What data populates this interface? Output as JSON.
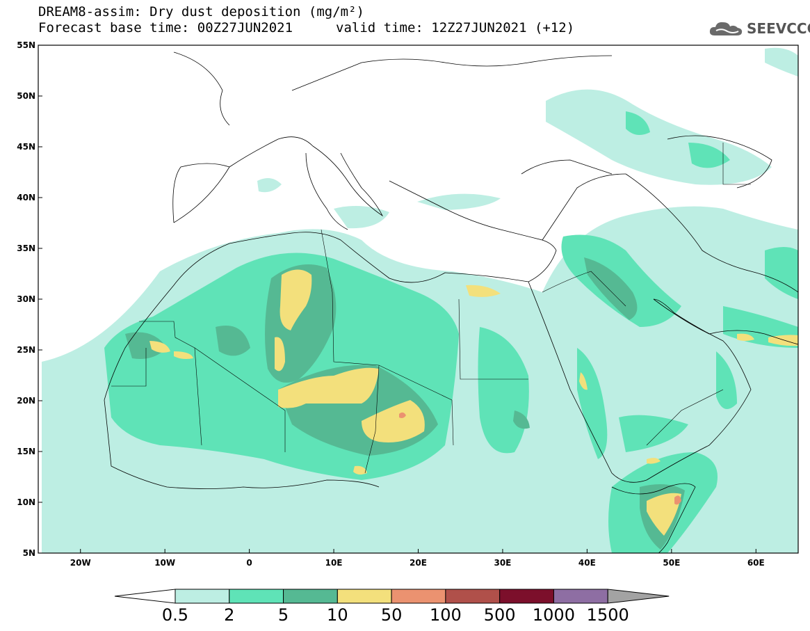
{
  "title": {
    "line1": "DREAM8-assim: Dry dust deposition (mg/m²)",
    "line2": "Forecast base time: 00Z27JUN2021",
    "valid": "valid time: 12Z27JUN2021 (+12)"
  },
  "logo": {
    "text": "SEEVCCC",
    "icon": "cloud-logo-icon"
  },
  "map": {
    "lon_range": [
      -25,
      65
    ],
    "lat_range": [
      5,
      55
    ],
    "lat_ticks": [
      "55N",
      "50N",
      "45N",
      "40N",
      "35N",
      "30N",
      "25N",
      "20N",
      "15N",
      "10N",
      "5N"
    ],
    "lon_ticks": [
      "20W",
      "10W",
      "0",
      "10E",
      "20E",
      "30E",
      "40E",
      "50E",
      "60E"
    ]
  },
  "colorbar": {
    "labels": [
      "0.5",
      "2",
      "5",
      "10",
      "50",
      "100",
      "500",
      "1000",
      "1500"
    ],
    "colors": [
      "#bdeee3",
      "#5fe3b7",
      "#55b993",
      "#f3e07c",
      "#eb9270",
      "#b0504a",
      "#7c0f2b",
      "#8e6ea3",
      "#a3a3a3"
    ]
  }
}
